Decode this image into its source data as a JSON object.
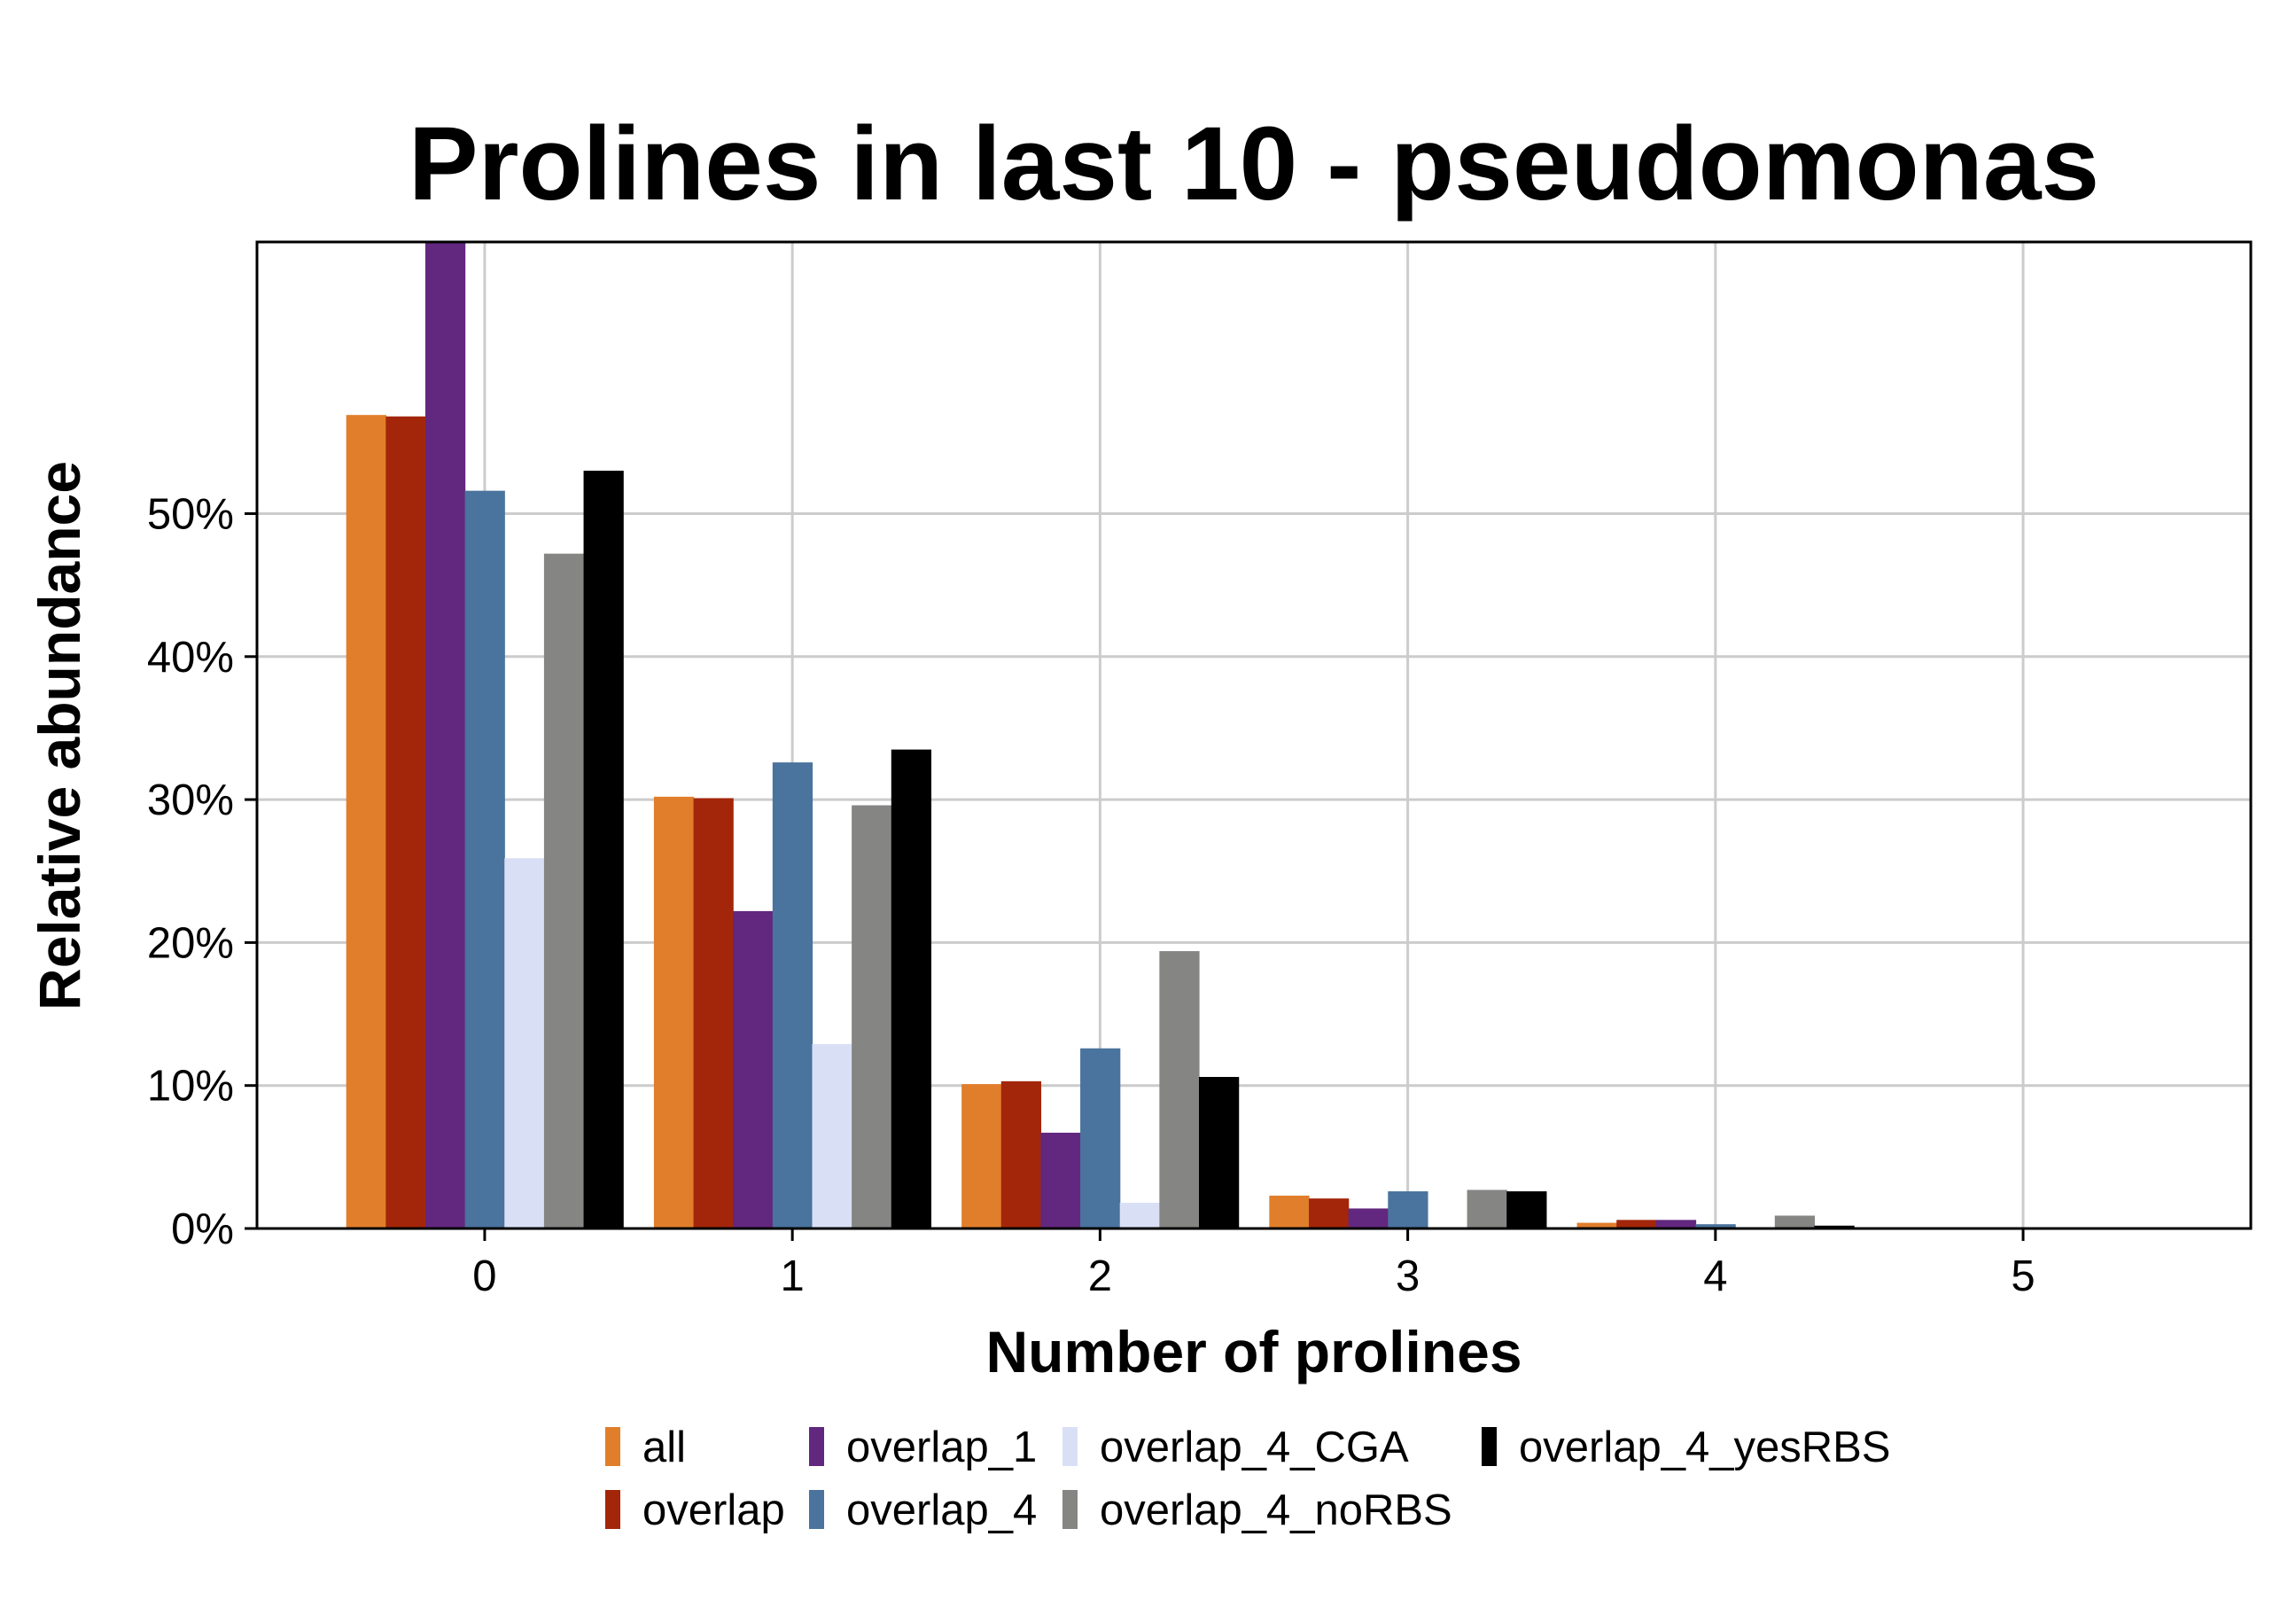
{
  "chart_data": {
    "type": "bar",
    "title": "Prolines in last 10 - pseudomonas",
    "xlabel": "Number of prolines",
    "ylabel": "Relative abundance",
    "categories": [
      "0",
      "1",
      "2",
      "3",
      "4",
      "5"
    ],
    "xlim": [
      -0.74,
      5.74
    ],
    "ylim": [
      0,
      69
    ],
    "yticks": [
      0,
      10,
      20,
      30,
      40,
      50
    ],
    "ytick_labels": [
      "0%",
      "10%",
      "20%",
      "30%",
      "40%",
      "50%"
    ],
    "grid": true,
    "legend_position": "bottom",
    "series": [
      {
        "name": "all",
        "color": "#E17E2B",
        "values": [
          56.9,
          30.2,
          10.1,
          2.3,
          0.4,
          0.05
        ]
      },
      {
        "name": "overlap",
        "color": "#A3260A",
        "values": [
          56.8,
          30.1,
          10.3,
          2.1,
          0.6,
          0
        ]
      },
      {
        "name": "overlap_1",
        "color": "#62277E",
        "values": [
          69,
          22.2,
          6.7,
          1.4,
          0.6,
          0
        ]
      },
      {
        "name": "overlap_4",
        "color": "#4A739D",
        "values": [
          51.6,
          32.6,
          12.6,
          2.6,
          0.3,
          0
        ]
      },
      {
        "name": "overlap_4_CGA",
        "color": "#D9E0F6",
        "values": [
          25.9,
          12.9,
          1.8,
          0,
          0,
          0
        ]
      },
      {
        "name": "overlap_4_noRBS",
        "color": "#858584",
        "values": [
          47.2,
          29.6,
          19.4,
          2.7,
          0.9,
          0
        ]
      },
      {
        "name": "overlap_4_yesRBS",
        "color": "#000000",
        "values": [
          53.0,
          33.5,
          10.6,
          2.6,
          0.2,
          0
        ]
      }
    ]
  }
}
